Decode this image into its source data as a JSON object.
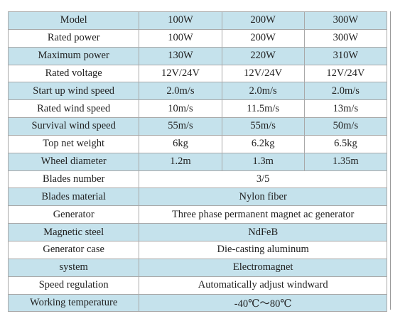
{
  "colors": {
    "shaded_row": "#c5e2ec",
    "plain_row": "#ffffff",
    "grid": "#a9a9a9"
  },
  "table": {
    "header": {
      "label": "Model",
      "values": [
        "100W",
        "200W",
        "300W"
      ]
    },
    "per_model_rows": [
      {
        "label": "Rated power",
        "values": [
          "100W",
          "200W",
          "300W"
        ]
      },
      {
        "label": "Maximum power",
        "values": [
          "130W",
          "220W",
          "310W"
        ]
      },
      {
        "label": "Rated voltage",
        "values": [
          "12V/24V",
          "12V/24V",
          "12V/24V"
        ]
      },
      {
        "label": "Start up wind speed",
        "values": [
          "2.0m/s",
          "2.0m/s",
          "2.0m/s"
        ]
      },
      {
        "label": "Rated wind speed",
        "values": [
          "10m/s",
          "11.5m/s",
          "13m/s"
        ]
      },
      {
        "label": "Survival wind speed",
        "values": [
          "55m/s",
          "55m/s",
          "50m/s"
        ]
      },
      {
        "label": "Top net weight",
        "values": [
          "6kg",
          "6.2kg",
          "6.5kg"
        ]
      },
      {
        "label": "Wheel diameter",
        "values": [
          "1.2m",
          "1.3m",
          "1.35m"
        ]
      }
    ],
    "shared_rows": [
      {
        "label": "Blades number",
        "value": "3/5"
      },
      {
        "label": "Blades material",
        "value": "Nylon fiber"
      },
      {
        "label": "Generator",
        "value": "Three phase permanent magnet ac generator"
      },
      {
        "label": "Magnetic steel",
        "value": "NdFeB"
      },
      {
        "label": "Generator case",
        "value": "Die-casting aluminum"
      },
      {
        "label": "system",
        "value": "Electromagnet"
      },
      {
        "label": "Speed regulation",
        "value": "Automatically adjust windward"
      },
      {
        "label": "Working temperature",
        "value": "-40℃～80℃"
      }
    ]
  }
}
